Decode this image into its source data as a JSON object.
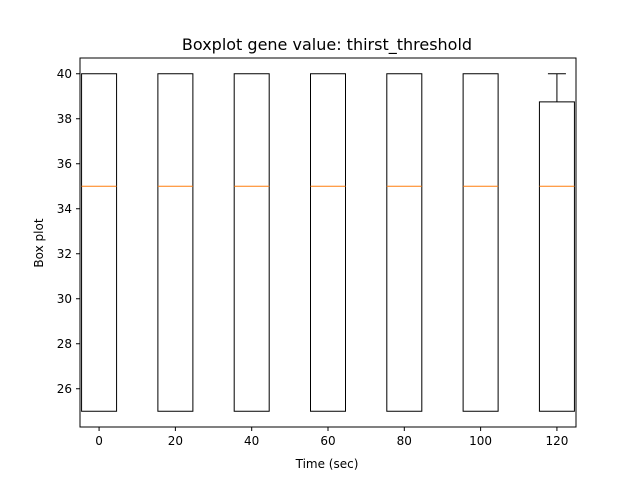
{
  "chart_data": {
    "type": "boxplot",
    "title": "Boxplot gene value: thirst_threshold",
    "xlabel": "Time (sec)",
    "ylabel": "Box plot",
    "x_ticks": [
      0,
      20,
      40,
      60,
      80,
      100,
      120
    ],
    "y_ticks": [
      26,
      28,
      30,
      32,
      34,
      36,
      38,
      40
    ],
    "xlim": [
      -5,
      125
    ],
    "ylim": [
      24.3,
      40.7
    ],
    "grid": false,
    "colors": {
      "box": "#000000",
      "median": "#ff7f0e"
    },
    "boxes": [
      {
        "x": 0,
        "whisker_low": 25,
        "q1": 25,
        "median": 35,
        "q3": 40,
        "whisker_high": 40
      },
      {
        "x": 20,
        "whisker_low": 25,
        "q1": 25,
        "median": 35,
        "q3": 40,
        "whisker_high": 40
      },
      {
        "x": 40,
        "whisker_low": 25,
        "q1": 25,
        "median": 35,
        "q3": 40,
        "whisker_high": 40
      },
      {
        "x": 60,
        "whisker_low": 25,
        "q1": 25,
        "median": 35,
        "q3": 40,
        "whisker_high": 40
      },
      {
        "x": 80,
        "whisker_low": 25,
        "q1": 25,
        "median": 35,
        "q3": 40,
        "whisker_high": 40
      },
      {
        "x": 100,
        "whisker_low": 25,
        "q1": 25,
        "median": 35,
        "q3": 40,
        "whisker_high": 40
      },
      {
        "x": 120,
        "whisker_low": 25,
        "q1": 25,
        "median": 35,
        "q3": 38.75,
        "whisker_high": 40
      }
    ]
  }
}
